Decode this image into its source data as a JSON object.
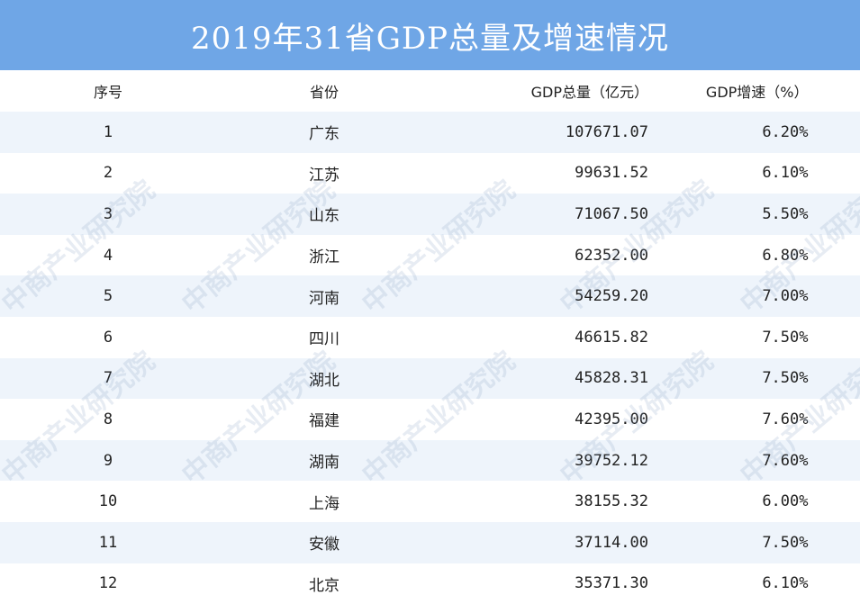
{
  "title": "2019年31省GDP总量及增速情况",
  "headers": {
    "index": "序号",
    "province": "省份",
    "gdp": "GDP总量（亿元）",
    "growth": "GDP增速（%）"
  },
  "rows": [
    {
      "index": "1",
      "province": "广东",
      "gdp": "107671.07",
      "growth": "6.20%"
    },
    {
      "index": "2",
      "province": "江苏",
      "gdp": "99631.52",
      "growth": "6.10%"
    },
    {
      "index": "3",
      "province": "山东",
      "gdp": "71067.50",
      "growth": "5.50%"
    },
    {
      "index": "4",
      "province": "浙江",
      "gdp": "62352.00",
      "growth": "6.80%"
    },
    {
      "index": "5",
      "province": "河南",
      "gdp": "54259.20",
      "growth": "7.00%"
    },
    {
      "index": "6",
      "province": "四川",
      "gdp": "46615.82",
      "growth": "7.50%"
    },
    {
      "index": "7",
      "province": "湖北",
      "gdp": "45828.31",
      "growth": "7.50%"
    },
    {
      "index": "8",
      "province": "福建",
      "gdp": "42395.00",
      "growth": "7.60%"
    },
    {
      "index": "9",
      "province": "湖南",
      "gdp": "39752.12",
      "growth": "7.60%"
    },
    {
      "index": "10",
      "province": "上海",
      "gdp": "38155.32",
      "growth": "6.00%"
    },
    {
      "index": "11",
      "province": "安徽",
      "gdp": "37114.00",
      "growth": "7.50%"
    },
    {
      "index": "12",
      "province": "北京",
      "gdp": "35371.30",
      "growth": "6.10%"
    }
  ],
  "watermark": "中商产业研究院",
  "colors": {
    "title_bar": "#6fa6e6",
    "stripe": "#eef4fb"
  }
}
